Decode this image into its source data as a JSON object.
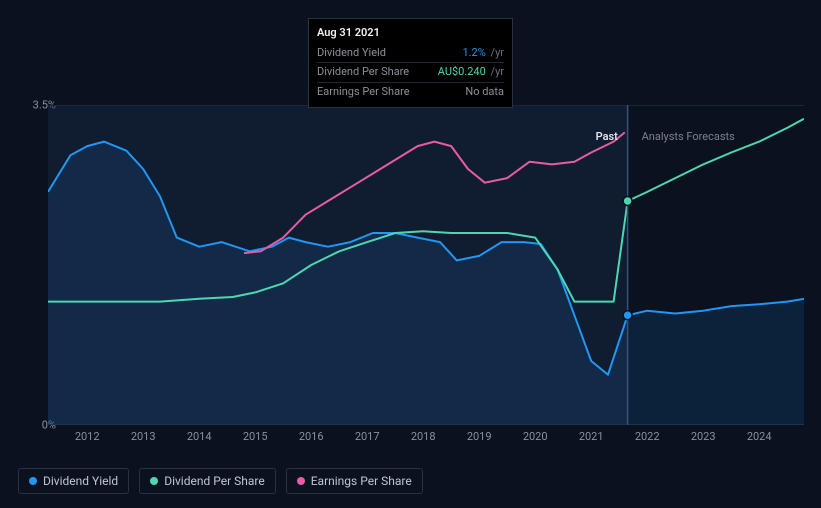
{
  "tooltip": {
    "date": "Aug 31 2021",
    "rows": [
      {
        "label": "Dividend Yield",
        "value": "1.2%",
        "suffix": "/yr",
        "color": "#2196f3"
      },
      {
        "label": "Dividend Per Share",
        "value": "AU$0.240",
        "suffix": "/yr",
        "color": "#4dd6b0"
      },
      {
        "label": "Earnings Per Share",
        "value": "No data",
        "suffix": "",
        "color": "#8a909c"
      }
    ]
  },
  "chart": {
    "background": "#0a1220",
    "plot_bg": "#0e1828",
    "border_color": "#1c2634",
    "ylim": [
      0,
      3.5
    ],
    "y_ticks": [
      {
        "v": 0,
        "label": "0%"
      },
      {
        "v": 3.5,
        "label": "3.5%"
      }
    ],
    "x_range": [
      2011.3,
      2024.8
    ],
    "x_ticks": [
      2012,
      2013,
      2014,
      2015,
      2016,
      2017,
      2018,
      2019,
      2020,
      2021,
      2022,
      2023,
      2024
    ],
    "divider_x": 2021.65,
    "scrub_x": 2021.65,
    "past_label": "Past",
    "forecast_label": "Analysts Forecasts",
    "past_shade": "rgba(30,50,80,0.35)",
    "series": {
      "dividend_yield": {
        "color": "#2196f3",
        "fill": "rgba(33,150,243,0.12)",
        "width": 2,
        "data": [
          [
            2011.3,
            2.55
          ],
          [
            2011.7,
            2.95
          ],
          [
            2012.0,
            3.05
          ],
          [
            2012.3,
            3.1
          ],
          [
            2012.7,
            3.0
          ],
          [
            2013.0,
            2.8
          ],
          [
            2013.3,
            2.5
          ],
          [
            2013.6,
            2.05
          ],
          [
            2014.0,
            1.95
          ],
          [
            2014.4,
            2.0
          ],
          [
            2014.9,
            1.9
          ],
          [
            2015.3,
            1.95
          ],
          [
            2015.6,
            2.05
          ],
          [
            2015.9,
            2.0
          ],
          [
            2016.3,
            1.95
          ],
          [
            2016.7,
            2.0
          ],
          [
            2017.1,
            2.1
          ],
          [
            2017.5,
            2.1
          ],
          [
            2017.9,
            2.05
          ],
          [
            2018.3,
            2.0
          ],
          [
            2018.6,
            1.8
          ],
          [
            2019.0,
            1.85
          ],
          [
            2019.4,
            2.0
          ],
          [
            2019.8,
            2.0
          ],
          [
            2020.1,
            1.98
          ],
          [
            2020.4,
            1.7
          ],
          [
            2020.7,
            1.2
          ],
          [
            2021.0,
            0.7
          ],
          [
            2021.3,
            0.55
          ],
          [
            2021.65,
            1.2
          ],
          [
            2022.0,
            1.25
          ],
          [
            2022.5,
            1.22
          ],
          [
            2023.0,
            1.25
          ],
          [
            2023.5,
            1.3
          ],
          [
            2024.0,
            1.32
          ],
          [
            2024.5,
            1.35
          ],
          [
            2024.8,
            1.38
          ]
        ],
        "marker_at": 2021.65
      },
      "dividend_per_share": {
        "color": "#4dd6b0",
        "width": 2,
        "data": [
          [
            2011.3,
            1.35
          ],
          [
            2012.0,
            1.35
          ],
          [
            2012.7,
            1.35
          ],
          [
            2013.3,
            1.35
          ],
          [
            2014.0,
            1.38
          ],
          [
            2014.6,
            1.4
          ],
          [
            2015.0,
            1.45
          ],
          [
            2015.5,
            1.55
          ],
          [
            2016.0,
            1.75
          ],
          [
            2016.5,
            1.9
          ],
          [
            2017.0,
            2.0
          ],
          [
            2017.5,
            2.1
          ],
          [
            2018.0,
            2.12
          ],
          [
            2018.5,
            2.1
          ],
          [
            2019.0,
            2.1
          ],
          [
            2019.5,
            2.1
          ],
          [
            2020.0,
            2.05
          ],
          [
            2020.4,
            1.7
          ],
          [
            2020.7,
            1.35
          ],
          [
            2021.0,
            1.35
          ],
          [
            2021.4,
            1.35
          ],
          [
            2021.65,
            2.45
          ],
          [
            2022.0,
            2.55
          ],
          [
            2022.5,
            2.7
          ],
          [
            2023.0,
            2.85
          ],
          [
            2023.5,
            2.98
          ],
          [
            2024.0,
            3.1
          ],
          [
            2024.5,
            3.25
          ],
          [
            2024.8,
            3.35
          ]
        ],
        "marker_at": 2021.65
      },
      "earnings_per_share": {
        "color": "#e85ba5",
        "width": 2,
        "data": [
          [
            2014.8,
            1.88
          ],
          [
            2015.1,
            1.9
          ],
          [
            2015.5,
            2.05
          ],
          [
            2015.9,
            2.3
          ],
          [
            2016.3,
            2.45
          ],
          [
            2016.7,
            2.6
          ],
          [
            2017.1,
            2.75
          ],
          [
            2017.5,
            2.9
          ],
          [
            2017.9,
            3.05
          ],
          [
            2018.2,
            3.1
          ],
          [
            2018.5,
            3.05
          ],
          [
            2018.8,
            2.8
          ],
          [
            2019.1,
            2.65
          ],
          [
            2019.5,
            2.7
          ],
          [
            2019.9,
            2.88
          ],
          [
            2020.3,
            2.85
          ],
          [
            2020.7,
            2.88
          ],
          [
            2021.0,
            2.98
          ],
          [
            2021.4,
            3.1
          ],
          [
            2021.6,
            3.2
          ]
        ]
      }
    }
  },
  "legend": [
    {
      "label": "Dividend Yield",
      "color": "#2196f3"
    },
    {
      "label": "Dividend Per Share",
      "color": "#4dd6b0"
    },
    {
      "label": "Earnings Per Share",
      "color": "#e85ba5"
    }
  ]
}
